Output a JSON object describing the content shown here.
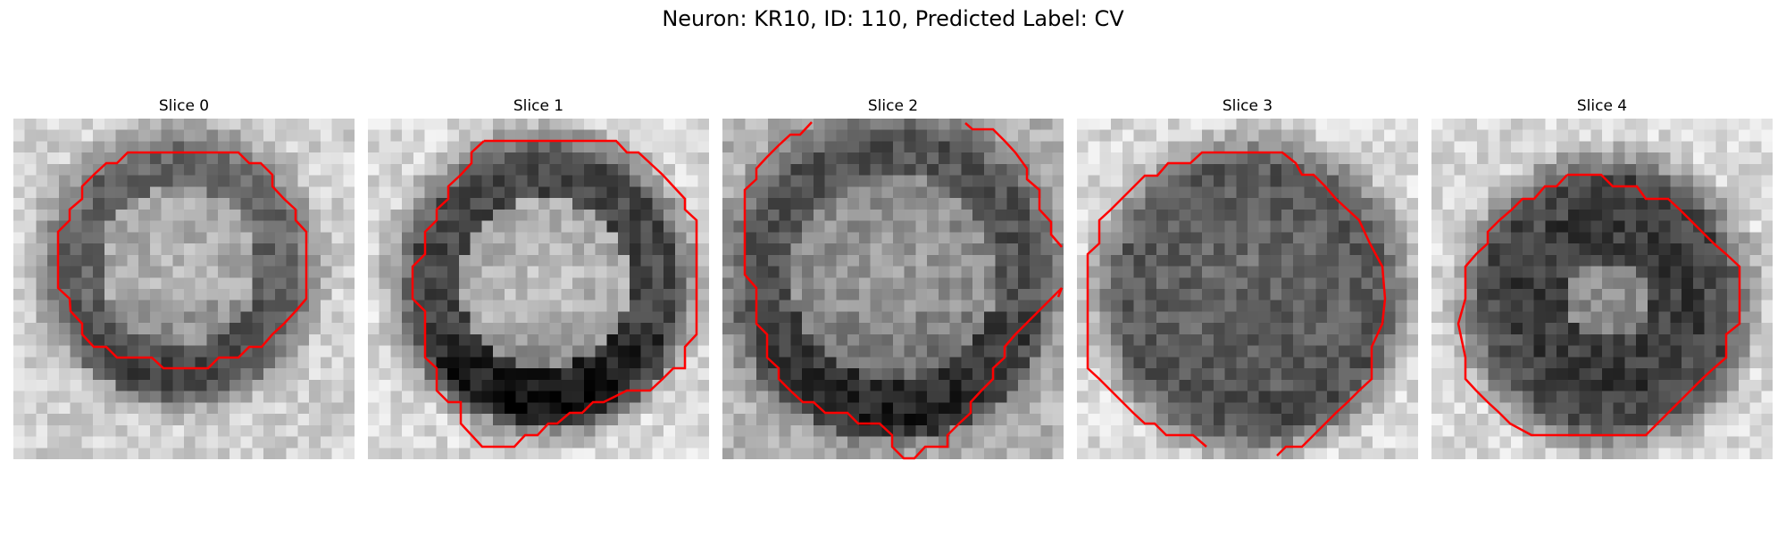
{
  "figure": {
    "title": "Neuron: KR10, ID: 110, Predicted Label: CV"
  },
  "panels": [
    {
      "label": "Slice 0"
    },
    {
      "label": "Slice 1"
    },
    {
      "label": "Slice 2"
    },
    {
      "label": "Slice 3"
    },
    {
      "label": "Slice 4"
    }
  ],
  "colors": {
    "contour": "#ff0000",
    "colormap": "grayscale (dark = low, light = high)"
  }
}
